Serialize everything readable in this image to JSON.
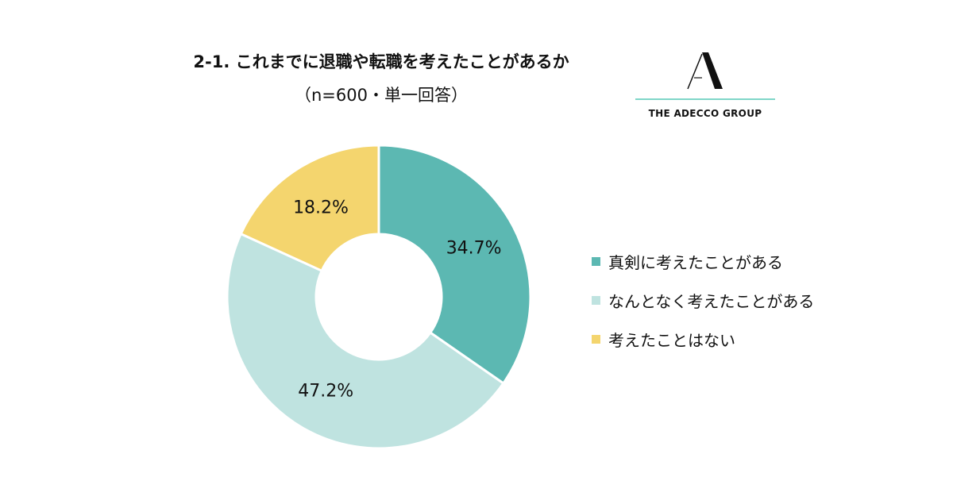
{
  "chart_data": {
    "type": "pie",
    "title": "2-1. これまでに退職や転職を考えたことがあるか",
    "subtitle": "（n=600・単一回答）",
    "categories": [
      "真剣に考えたことがある",
      "なんとなく考えたことがある",
      "考えたことはない"
    ],
    "values": [
      34.7,
      47.2,
      18.2
    ],
    "labels": [
      "34.7%",
      "47.2%",
      "18.2%"
    ],
    "colors": [
      "#5cb8b2",
      "#bfe3e0",
      "#f4d56e"
    ],
    "legend_position": "right",
    "donut": true
  },
  "logo": {
    "text": "THE ADECCO GROUP"
  }
}
